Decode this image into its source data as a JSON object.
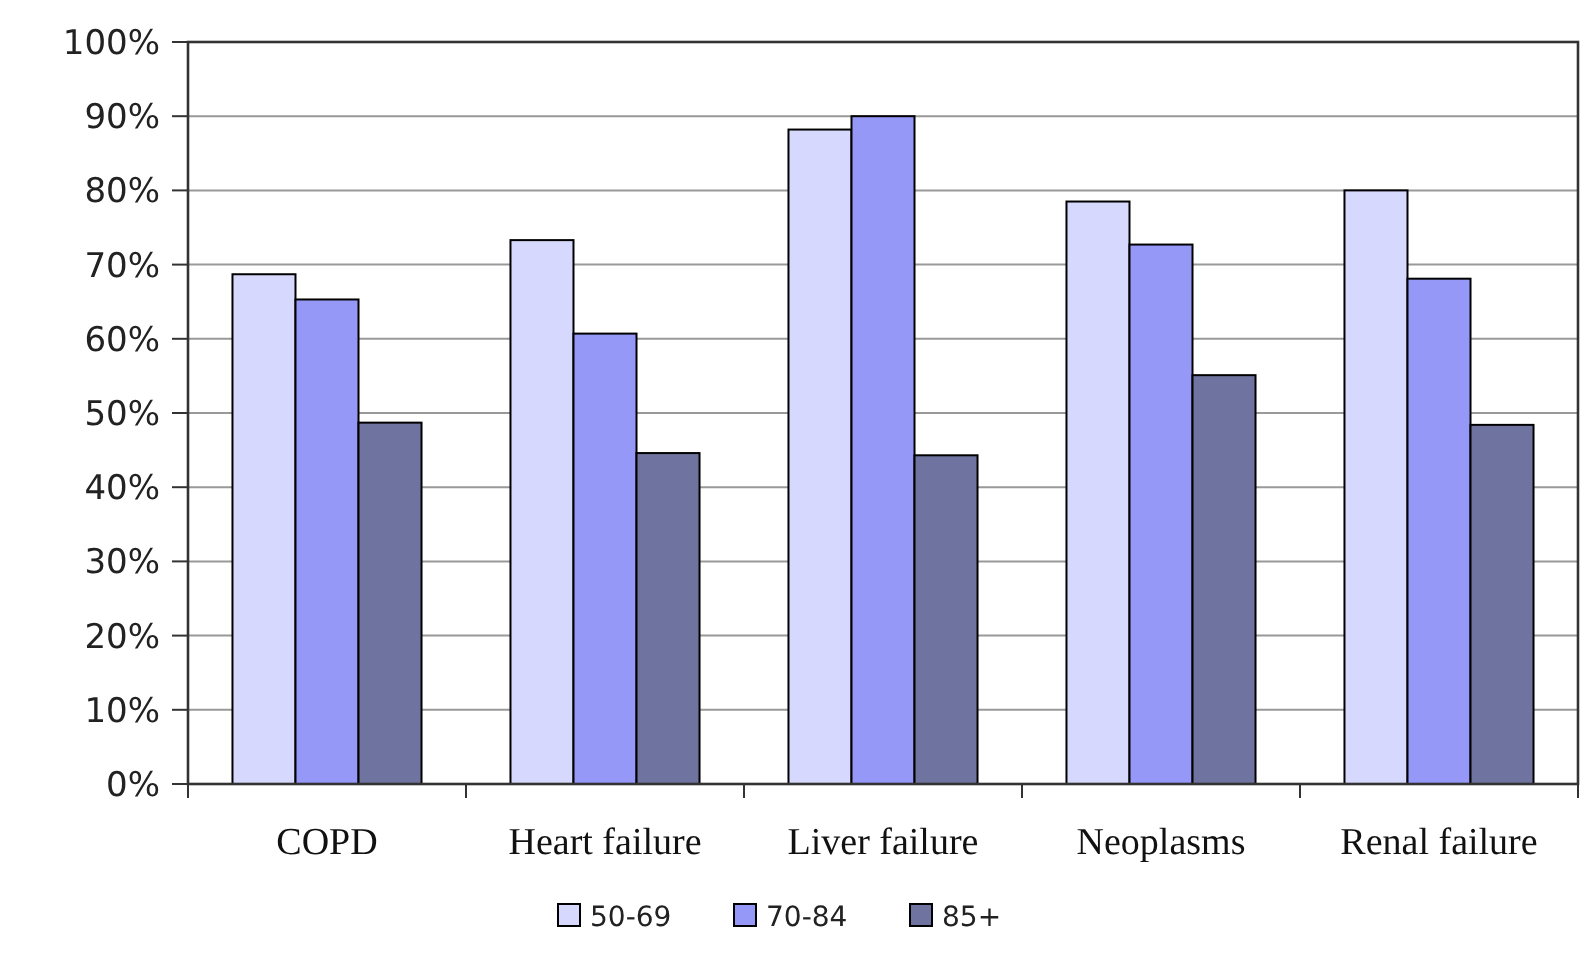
{
  "chart_data": {
    "type": "bar",
    "categories": [
      "COPD",
      "Heart failure",
      "Liver failure",
      "Neoplasms",
      "Renal failure"
    ],
    "series": [
      {
        "name": "50-69",
        "color": "#d6d8fd",
        "values": [
          68.7,
          73.3,
          88.2,
          78.5,
          80.0
        ]
      },
      {
        "name": "70-84",
        "color": "#9698f8",
        "values": [
          65.3,
          60.7,
          90.0,
          72.7,
          68.1
        ]
      },
      {
        "name": "85+",
        "color": "#6f739f",
        "values": [
          48.7,
          44.6,
          44.3,
          55.1,
          48.4
        ]
      }
    ],
    "ylim": [
      0,
      100
    ],
    "yticks": [
      {
        "value": 0,
        "label": "0%"
      },
      {
        "value": 10,
        "label": "10%"
      },
      {
        "value": 20,
        "label": "20%"
      },
      {
        "value": 30,
        "label": "30%"
      },
      {
        "value": 40,
        "label": "40%"
      },
      {
        "value": 50,
        "label": "50%"
      },
      {
        "value": 60,
        "label": "60%"
      },
      {
        "value": 70,
        "label": "70%"
      },
      {
        "value": 80,
        "label": "80%"
      },
      {
        "value": 90,
        "label": "90%"
      },
      {
        "value": 100,
        "label": "100%"
      }
    ],
    "grid": "y",
    "legend": "bottom"
  }
}
